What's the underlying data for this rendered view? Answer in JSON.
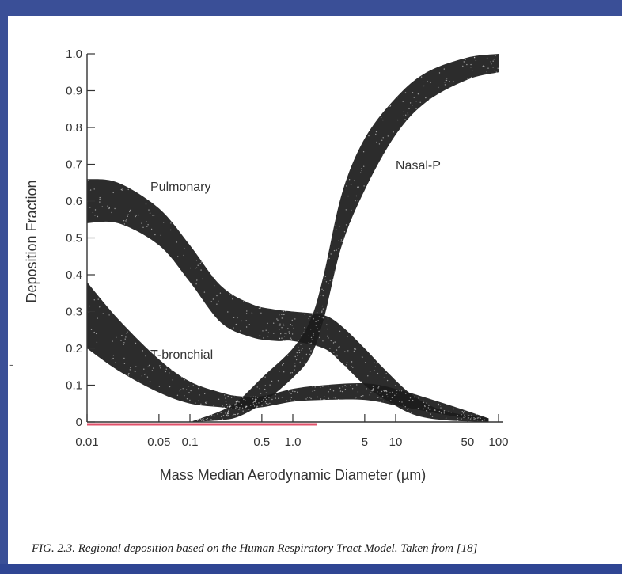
{
  "chart_data": {
    "type": "area",
    "xlabel": "Mass Median Aerodynamic Diameter (µm)",
    "ylabel": "Deposition Fraction",
    "xscale": "log",
    "xlim": [
      0.01,
      100
    ],
    "ylim": [
      0,
      1.0
    ],
    "xticks": [
      {
        "value": 0.01,
        "label": "0.01"
      },
      {
        "value": 0.05,
        "label": "0.05"
      },
      {
        "value": 0.1,
        "label": "0.1"
      },
      {
        "value": 0.5,
        "label": "0.5"
      },
      {
        "value": 1.0,
        "label": "1.0"
      },
      {
        "value": 5,
        "label": "5"
      },
      {
        "value": 10,
        "label": "10"
      },
      {
        "value": 50,
        "label": "50"
      },
      {
        "value": 100,
        "label": "100"
      }
    ],
    "yticks": [
      {
        "value": 0,
        "label": "0"
      },
      {
        "value": 0.1,
        "label": "0.1"
      },
      {
        "value": 0.2,
        "label": "0.2"
      },
      {
        "value": 0.3,
        "label": "0.3"
      },
      {
        "value": 0.4,
        "label": "0.4"
      },
      {
        "value": 0.5,
        "label": "0.5"
      },
      {
        "value": 0.6,
        "label": "0.6"
      },
      {
        "value": 0.7,
        "label": "0.7"
      },
      {
        "value": 0.8,
        "label": "0.8"
      },
      {
        "value": 0.9,
        "label": "0.9"
      },
      {
        "value": 1.0,
        "label": "1.0"
      }
    ],
    "series": [
      {
        "name": "Pulmonary",
        "x": [
          0.01,
          0.02,
          0.05,
          0.1,
          0.2,
          0.4,
          0.7,
          1.0,
          2.0,
          3.0,
          5.0,
          8.0,
          15.0,
          30.0,
          80.0
        ],
        "upper": [
          0.66,
          0.65,
          0.58,
          0.48,
          0.37,
          0.32,
          0.305,
          0.3,
          0.29,
          0.26,
          0.2,
          0.14,
          0.07,
          0.03,
          0.01
        ],
        "lower": [
          0.54,
          0.54,
          0.48,
          0.38,
          0.27,
          0.23,
          0.22,
          0.22,
          0.2,
          0.16,
          0.1,
          0.06,
          0.02,
          0.005,
          0.0
        ]
      },
      {
        "name": "T-bronchial",
        "x": [
          0.01,
          0.02,
          0.05,
          0.1,
          0.2,
          0.3,
          0.5,
          1.0,
          2.0,
          5.0,
          10.0,
          30.0,
          80.0
        ],
        "upper": [
          0.38,
          0.28,
          0.17,
          0.11,
          0.08,
          0.07,
          0.07,
          0.09,
          0.1,
          0.105,
          0.09,
          0.05,
          0.01
        ],
        "lower": [
          0.2,
          0.14,
          0.08,
          0.05,
          0.04,
          0.035,
          0.04,
          0.055,
          0.06,
          0.06,
          0.045,
          0.02,
          0.0
        ]
      },
      {
        "name": "Nasal-P",
        "x": [
          0.1,
          0.2,
          0.3,
          0.5,
          1.0,
          1.5,
          2.0,
          3.0,
          5.0,
          10.0,
          20.0,
          50.0,
          100.0
        ],
        "upper": [
          0.0,
          0.03,
          0.06,
          0.12,
          0.2,
          0.28,
          0.4,
          0.62,
          0.77,
          0.88,
          0.95,
          0.99,
          1.0
        ],
        "lower": [
          0.0,
          0.005,
          0.015,
          0.05,
          0.12,
          0.18,
          0.28,
          0.48,
          0.63,
          0.78,
          0.87,
          0.93,
          0.95
        ]
      }
    ],
    "annotations": [
      "Pulmonary",
      "T-bronchial",
      "Nasal-P"
    ]
  },
  "caption": "FIG. 2.3. Regional deposition based on the Human Respiratory Tract Model. Taken from [18]",
  "stray_mark": "-",
  "colors": {
    "frame": "#3a4f97",
    "band": "#1c1c1c",
    "axis": "#333333",
    "underline": "#e0506a"
  }
}
